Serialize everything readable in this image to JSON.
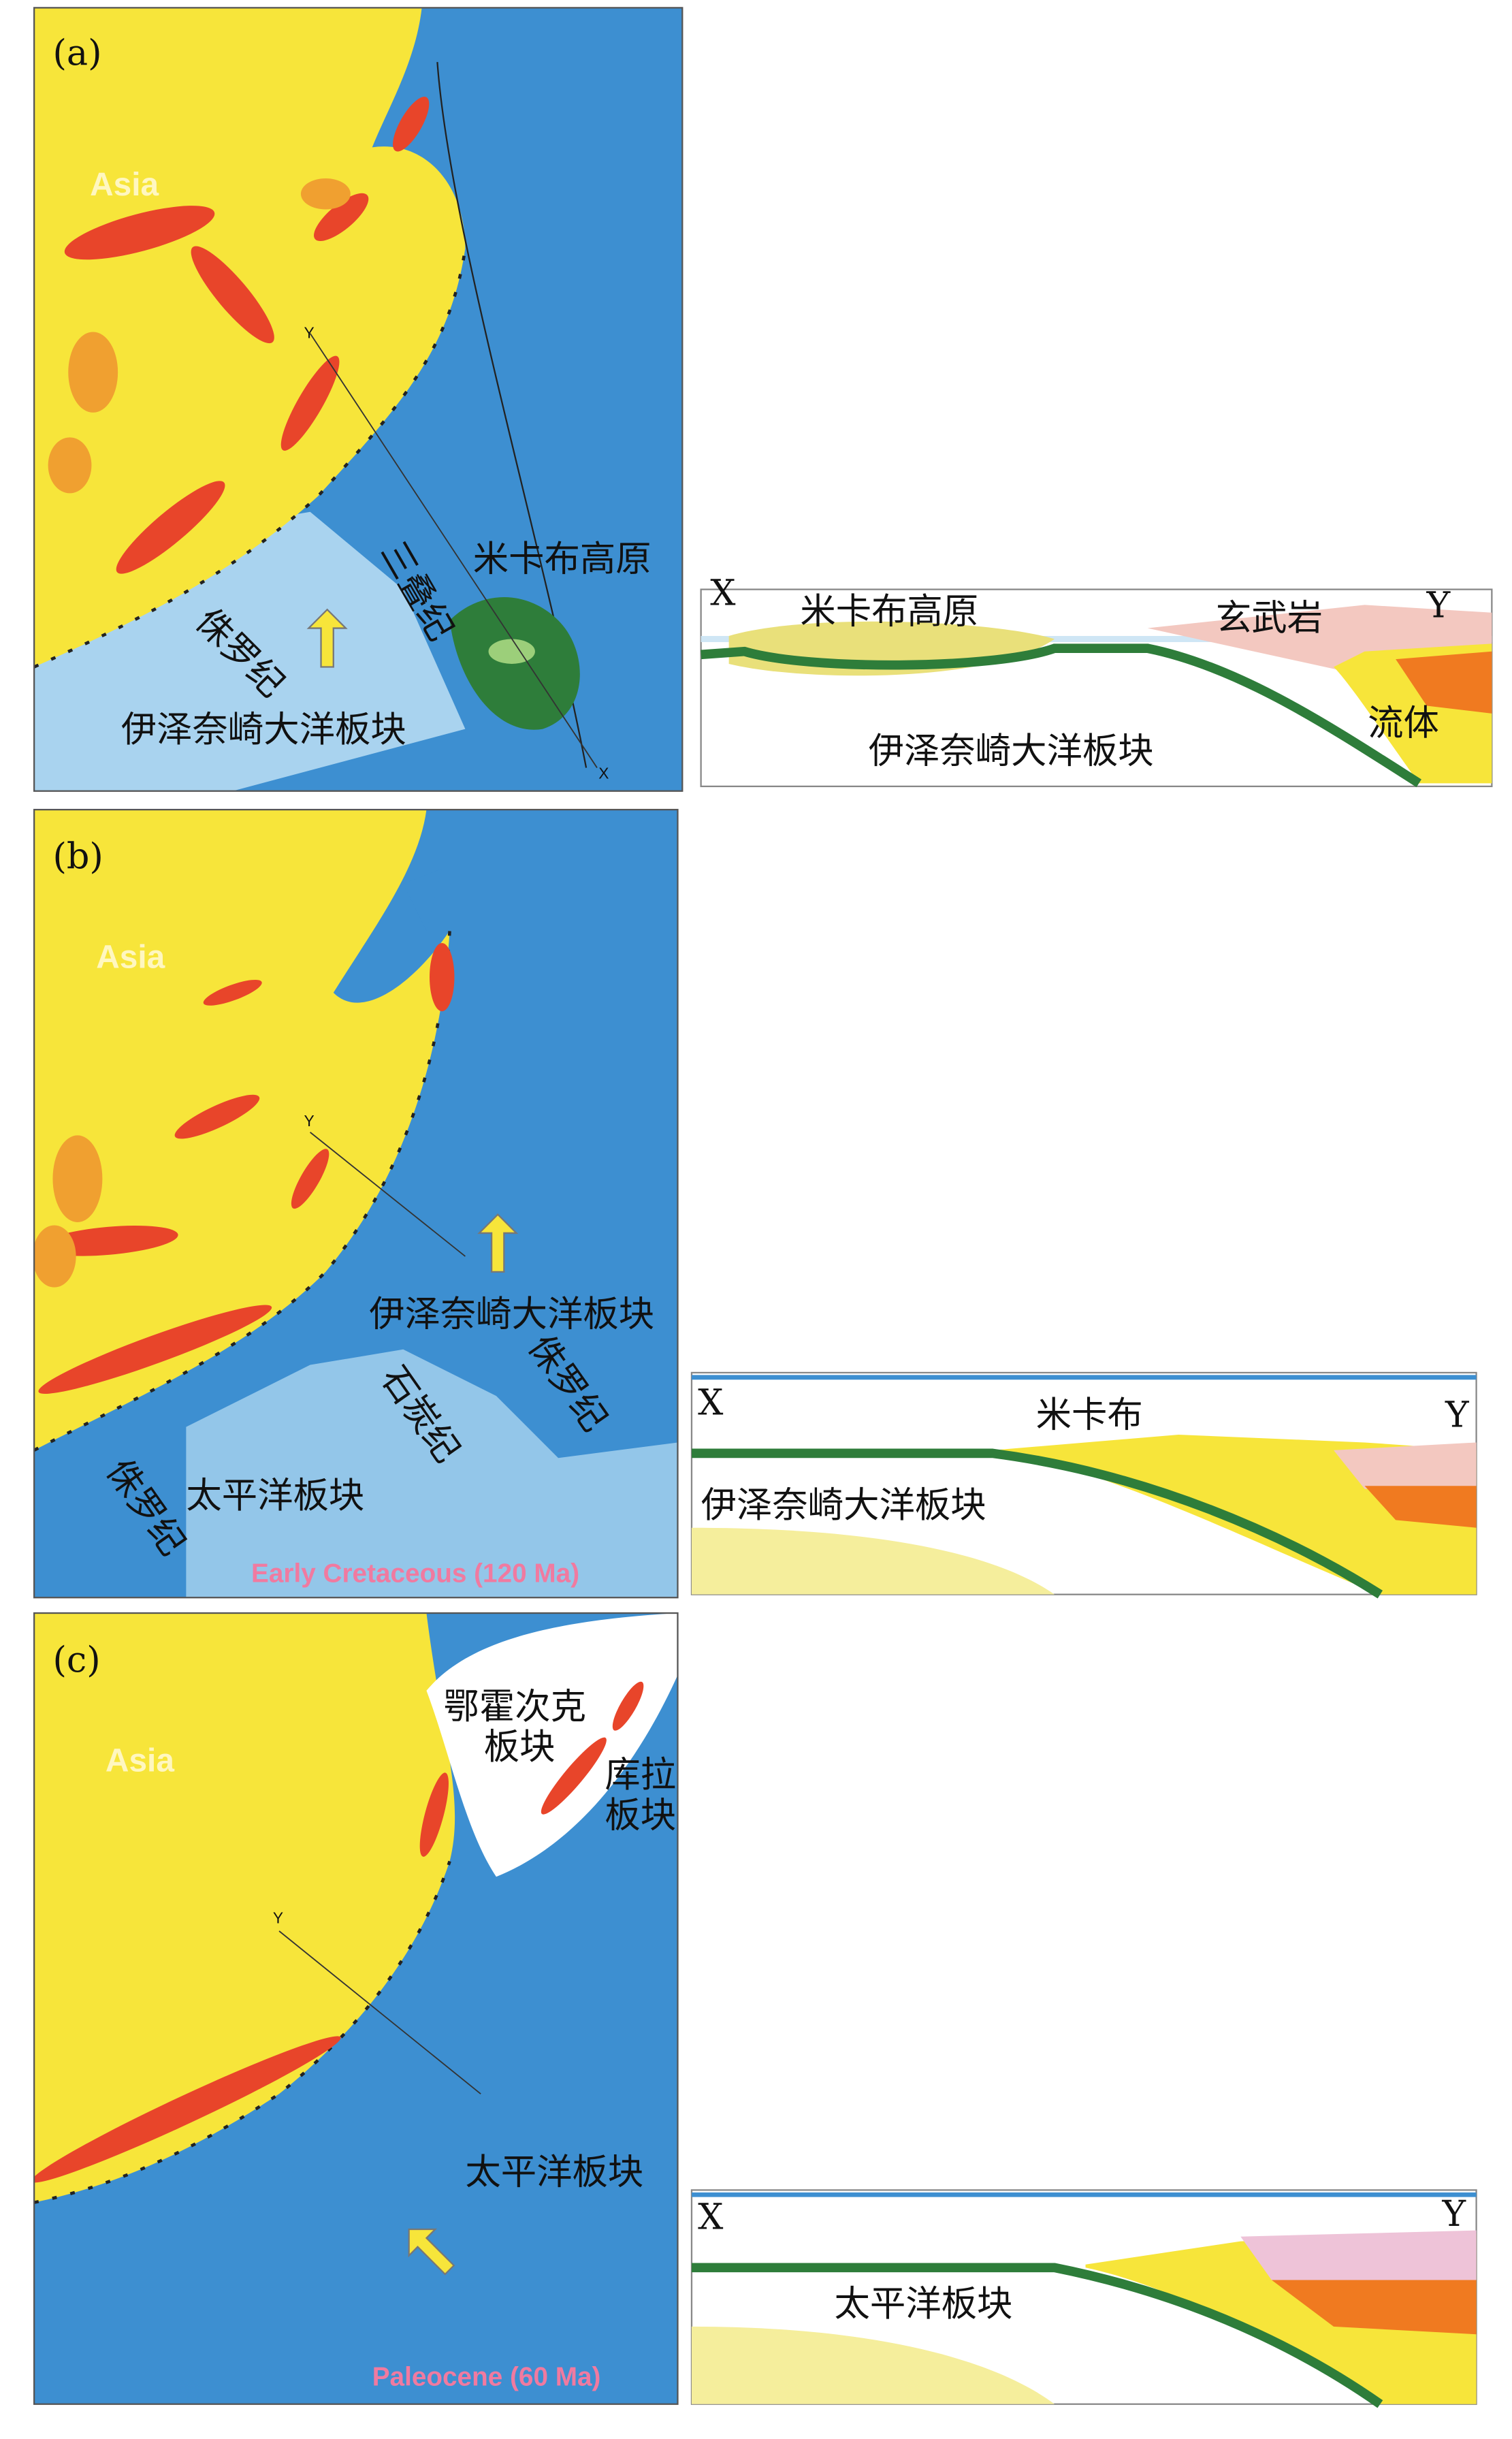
{
  "panels": [
    {
      "label": "(a)",
      "map": {
        "region": "Asia",
        "y_marker": "Y",
        "x_marker": "X",
        "labels": [
          "三叠纪",
          "米卡布高原",
          "侏罗纪",
          "伊泽奈崎大洋板块"
        ]
      },
      "section": {
        "left": "X",
        "right": "Y",
        "labels": [
          "米卡布高原",
          "玄武岩",
          "伊泽奈崎大洋板块",
          "流体"
        ]
      }
    },
    {
      "label": "(b)",
      "map": {
        "region": "Asia",
        "y_marker": "Y",
        "labels": [
          "伊泽奈崎大洋板块",
          "侏罗纪",
          "石炭纪",
          "太平洋板块",
          "侏罗纪"
        ],
        "caption": "Early Cretaceous (120 Ma)"
      },
      "section": {
        "left": "X",
        "right": "Y",
        "labels": [
          "米卡布",
          "伊泽奈崎大洋板块"
        ]
      }
    },
    {
      "label": "(c)",
      "map": {
        "region": "Asia",
        "y_marker": "Y",
        "labels": [
          "鄂霍次克",
          "板块",
          "库拉",
          "板块",
          "太平洋板块"
        ],
        "caption": "Paleocene (60 Ma)"
      },
      "section": {
        "left": "X",
        "right": "Y",
        "labels": [
          "太平洋板块"
        ]
      }
    }
  ]
}
